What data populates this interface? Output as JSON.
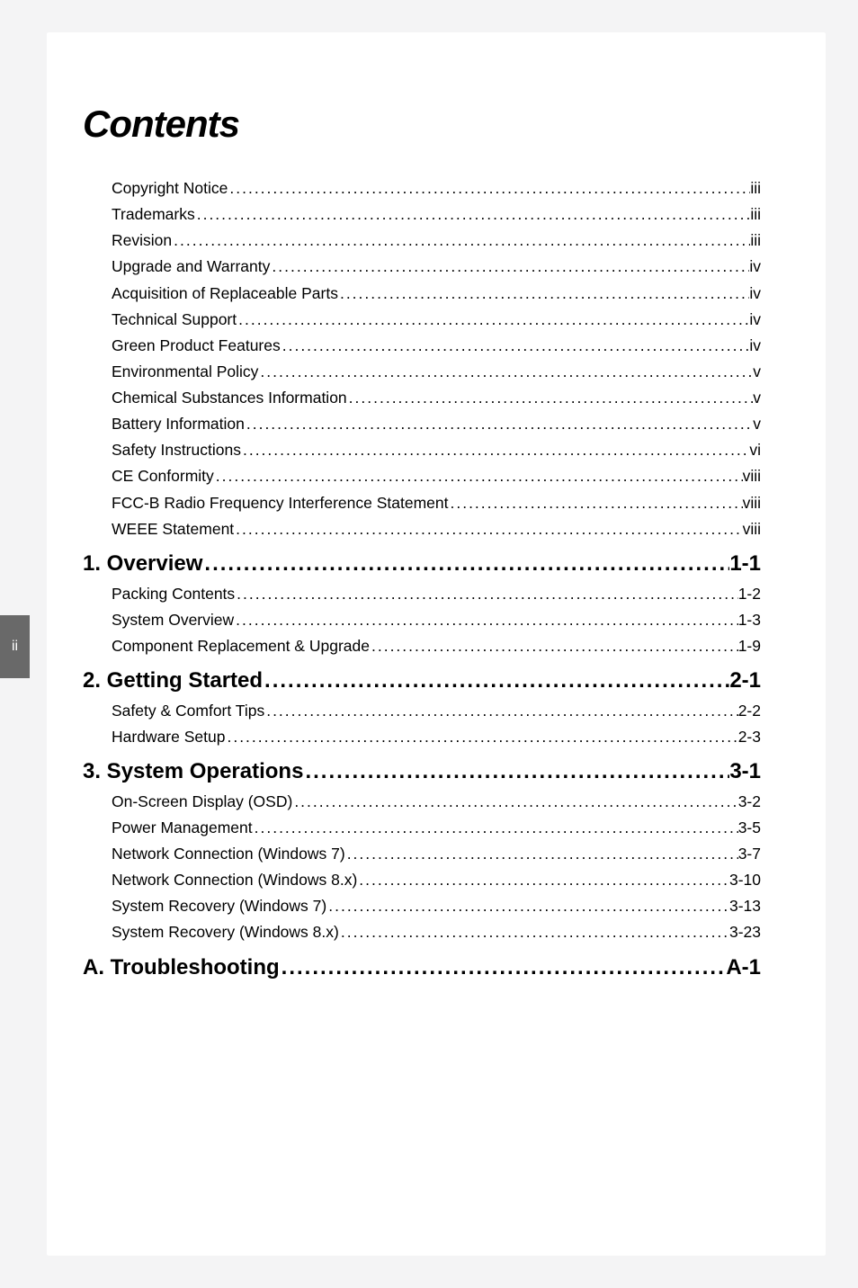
{
  "page_number_tab": "ii",
  "title": "Contents",
  "colors": {
    "page_bg": "#ffffff",
    "outer_bg": "#f4f4f5",
    "tab_bg": "#696969",
    "tab_fg": "#ffffff",
    "text": "#000000"
  },
  "typography": {
    "title_font": "Verdana",
    "title_style": "italic bold",
    "title_size_pt": 32,
    "chapter_font": "Verdana",
    "chapter_weight": "bold",
    "chapter_size_pt": 18,
    "entry_font": "Arial",
    "entry_size_pt": 13
  },
  "toc": [
    {
      "type": "front",
      "items": [
        {
          "label": "Copyright Notice",
          "page": "iii"
        },
        {
          "label": "Trademarks",
          "page": "iii"
        },
        {
          "label": "Revision",
          "page": "iii"
        },
        {
          "label": "Upgrade and Warranty",
          "page": "iv"
        },
        {
          "label": "Acquisition of Replaceable Parts",
          "page": "iv"
        },
        {
          "label": "Technical Support",
          "page": "iv"
        },
        {
          "label": "Green Product Features",
          "page": "iv"
        },
        {
          "label": "Environmental Policy ",
          "page": " v"
        },
        {
          "label": "Chemical Substances Information",
          "page": " v"
        },
        {
          "label": "Battery Information",
          "page": " v"
        },
        {
          "label": "Safety Instructions",
          "page": "vi"
        },
        {
          "label": "CE Conformity",
          "page": " viii"
        },
        {
          "label": "FCC-B Radio Frequency Interference Statement",
          "page": " viii"
        },
        {
          "label": "WEEE Statement",
          "page": " viii"
        }
      ]
    },
    {
      "type": "chapter",
      "label": "1. Overview",
      "page": " 1-1",
      "items": [
        {
          "label": "Packing Contents",
          "page": "1-2"
        },
        {
          "label": "System Overview",
          "page": "1-3"
        },
        {
          "label": "Component Replacement & Upgrade",
          "page": "1-9"
        }
      ]
    },
    {
      "type": "chapter",
      "label": "2. Getting Started",
      "page": " 2-1",
      "items": [
        {
          "label": "Safety & Comfort Tips",
          "page": "2-2"
        },
        {
          "label": "Hardware Setup",
          "page": "2-3"
        }
      ]
    },
    {
      "type": "chapter",
      "label": "3. System Operations",
      "page": " 3-1",
      "items": [
        {
          "label": "On-Screen Display (OSD)",
          "page": "3-2"
        },
        {
          "label": "Power Management",
          "page": "3-5"
        },
        {
          "label": "Network Connection (Windows 7)",
          "page": "3-7"
        },
        {
          "label": "Network Connection (Windows 8.x)",
          "page": "3-10"
        },
        {
          "label": "System Recovery (Windows 7)",
          "page": "3-13"
        },
        {
          "label": "System Recovery (Windows 8.x)",
          "page": "3-23"
        }
      ]
    },
    {
      "type": "chapter",
      "label": "A. Troubleshooting",
      "page": "A-1",
      "items": []
    }
  ]
}
